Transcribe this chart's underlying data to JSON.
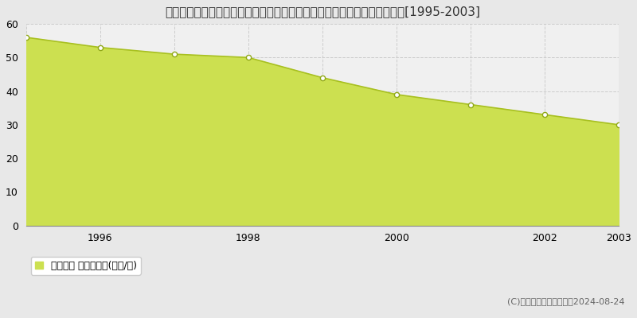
{
  "title": "北海道札幌市西区宮の沢２条４丁目３８２番１０内　地価公示　地価推移[1995-2003]",
  "years": [
    1995,
    1996,
    1997,
    1998,
    1999,
    2000,
    2001,
    2002,
    2003
  ],
  "values": [
    56,
    53,
    51,
    50,
    44,
    39,
    36,
    33,
    30
  ],
  "line_color": "#a8c020",
  "fill_color": "#cce050",
  "marker_facecolor": "#ffffff",
  "marker_edgecolor": "#90a818",
  "plot_bg_color": "#f0f0f0",
  "fig_bg_color": "#e8e8e8",
  "grid_color": "#cccccc",
  "legend_label": "地価公示 平均坪単価(万円/坪)",
  "legend_square_color": "#cce050",
  "copyright_text": "(C)土地価格ドットコム　2024-08-24",
  "ylim": [
    0,
    60
  ],
  "yticks": [
    0,
    10,
    20,
    30,
    40,
    50,
    60
  ],
  "xtick_positions": [
    1995,
    1996,
    1997,
    1998,
    1999,
    2000,
    2001,
    2002,
    2003
  ],
  "xticklabels": [
    "",
    "1996",
    "",
    "1998",
    "",
    "2000",
    "",
    "2002",
    "2003"
  ],
  "title_fontsize": 11,
  "axis_fontsize": 9,
  "legend_fontsize": 9,
  "copyright_fontsize": 8,
  "xlim_left": 1995,
  "xlim_right": 2003
}
